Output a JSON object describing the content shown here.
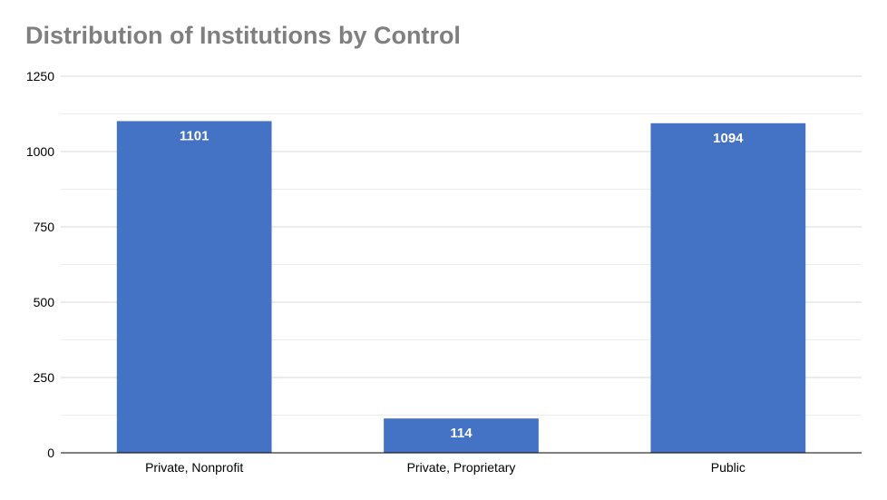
{
  "chart_data": {
    "type": "bar",
    "title": "Distribution of Institutions by Control",
    "xlabel": "",
    "ylabel": "",
    "categories": [
      "Private, Nonprofit",
      "Private, Proprietary",
      "Public"
    ],
    "values": [
      1101,
      114,
      1094
    ],
    "data_labels": [
      "1101",
      "114",
      "1094"
    ],
    "ylim": [
      0,
      1250
    ],
    "yticks": [
      0,
      250,
      500,
      750,
      1000,
      1250
    ],
    "ytick_labels": [
      "0",
      "250",
      "500",
      "750",
      "1000",
      "1250"
    ],
    "grid": true,
    "minor_grid": true,
    "legend": "none",
    "colors": {
      "bar": "#4472c4",
      "title": "#7f7f7f",
      "grid": "#d9d9d9",
      "axis": "#000000",
      "data_label": "#ffffff"
    }
  }
}
